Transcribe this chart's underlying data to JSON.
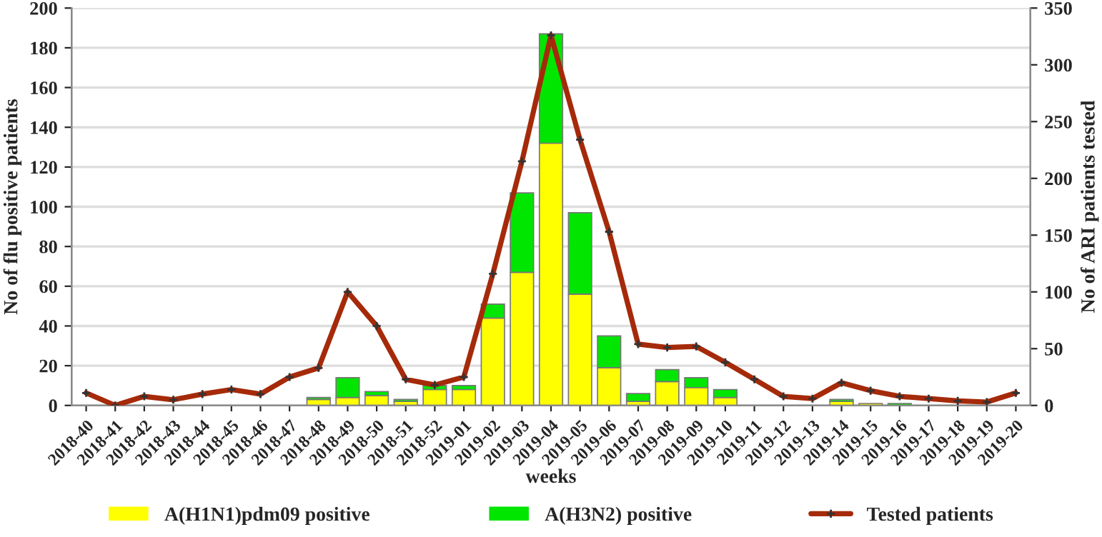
{
  "chart_data": {
    "type": "bar",
    "stacked": true,
    "xlabel": "weeks",
    "ylabel": "No of flu positive patients",
    "y2label": "No of ARI patients tested",
    "categories": [
      "2018-40",
      "2018-41",
      "2018-42",
      "2018-43",
      "2018-44",
      "2018-45",
      "2018-46",
      "2018-47",
      "2018-48",
      "2018-49",
      "2018-50",
      "2018-51",
      "2018-52",
      "2019-01",
      "2019-02",
      "2019-03",
      "2019-04",
      "2019-05",
      "2019-06",
      "2019-07",
      "2019-08",
      "2019-09",
      "2019-10",
      "2019-11",
      "2019-12",
      "2019-13",
      "2019-14",
      "2019-15",
      "2019-16",
      "2019-17",
      "2019-18",
      "2019-19",
      "2019-20"
    ],
    "series": [
      {
        "name": "A(H1N1)pdm09 positive",
        "color": "#ffff00",
        "values": [
          0,
          0,
          0,
          0,
          0,
          0,
          0,
          0,
          3,
          4,
          5,
          2,
          8,
          8,
          44,
          67,
          132,
          56,
          19,
          2,
          12,
          9,
          4,
          0,
          0,
          0,
          2,
          1,
          0,
          0,
          0,
          0,
          0
        ]
      },
      {
        "name": "A(H3N2) positive",
        "color": "#00e600",
        "values": [
          0,
          0,
          0,
          0,
          0,
          0,
          0,
          0,
          1,
          10,
          2,
          1,
          2,
          2,
          7,
          40,
          55,
          41,
          16,
          4,
          6,
          5,
          4,
          0,
          0,
          0,
          1,
          0,
          1,
          0,
          0,
          0,
          0
        ]
      },
      {
        "name": "Tested patients",
        "type": "line",
        "axis": "y2",
        "color": "#a52a0a",
        "marker": "cross",
        "values": [
          11,
          0,
          8,
          5,
          10,
          14,
          10,
          25,
          33,
          100,
          70,
          23,
          18,
          25,
          116,
          215,
          326,
          234,
          153,
          54,
          51,
          52,
          38,
          23,
          8,
          6,
          20,
          13,
          8,
          6,
          4,
          3,
          11
        ]
      }
    ],
    "ylim": [
      0,
      200
    ],
    "yticks": [
      0,
      20,
      40,
      60,
      80,
      100,
      120,
      140,
      160,
      180,
      200
    ],
    "y2lim": [
      0,
      350
    ],
    "y2ticks": [
      0,
      50,
      100,
      150,
      200,
      250,
      300,
      350
    ],
    "grid": "y",
    "legend": "bottom"
  }
}
